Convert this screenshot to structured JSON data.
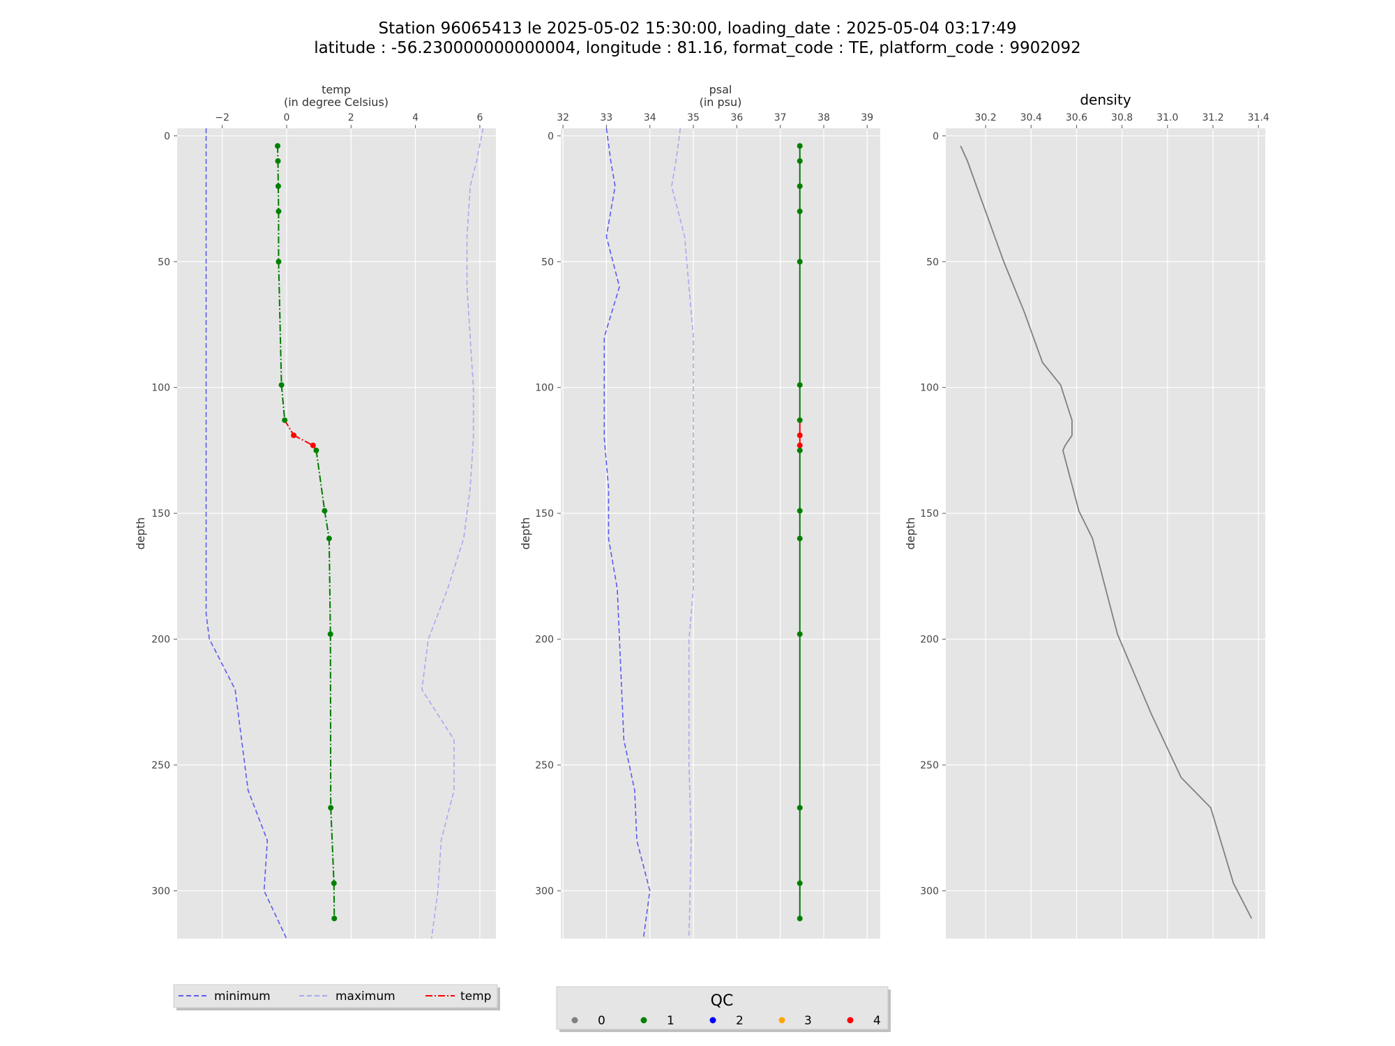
{
  "title_line1": "Station 96065413 le 2025-05-02 15:30:00, loading_date : 2025-05-04 03:17:49",
  "title_line2": "latitude : -56.230000000000004, longitude : 81.16, format_code : TE, platform_code : 9902092",
  "colors": {
    "panel_bg": "#e5e5e5",
    "grid": "#ffffff",
    "minimum": "#5a5af0",
    "maximum": "#a8a8f0",
    "profile_line": "#007a00",
    "bad_line": "#ff0000",
    "density": "#7f7f7f",
    "qc": {
      "0": "#808080",
      "1": "#008000",
      "2": "#0000ff",
      "3": "#ffa500",
      "4": "#ff0000"
    }
  },
  "legend_lines": {
    "items": [
      {
        "label": "minimum",
        "style": "dashed",
        "color": "#5a5af0"
      },
      {
        "label": "maximum",
        "style": "dashed",
        "color": "#a8a8f0"
      },
      {
        "label": "temp",
        "style": "dashdot",
        "color": "#ff0000"
      }
    ]
  },
  "legend_qc": {
    "title": "QC",
    "items": [
      {
        "label": "0",
        "color": "#808080"
      },
      {
        "label": "1",
        "color": "#008000"
      },
      {
        "label": "2",
        "color": "#0000ff"
      },
      {
        "label": "3",
        "color": "#ffa500"
      },
      {
        "label": "4",
        "color": "#ff0000"
      }
    ]
  },
  "chart_data": [
    {
      "type": "line",
      "xlabel_line1": "temp",
      "xlabel_line2": "(in degree Celsius)",
      "ylabel": "depth",
      "xlim": [
        -3.4,
        6.5
      ],
      "ylim": [
        319,
        -3
      ],
      "xticks": [
        -2,
        0,
        2,
        4,
        6
      ],
      "xtick_labels": [
        "−2",
        "0",
        "2",
        "4",
        "6"
      ],
      "yticks": [
        0,
        50,
        100,
        150,
        200,
        250,
        300
      ],
      "grid": true,
      "minimum": {
        "x": [
          -2.5,
          -2.5,
          -2.5,
          -2.5,
          -2.5,
          -2.5,
          -2.5,
          -2.5,
          -2.5,
          -2.4,
          -1.6,
          -1.2,
          -0.6,
          -0.7,
          0.0
        ],
        "depth": [
          -3,
          20,
          50,
          80,
          100,
          120,
          150,
          180,
          190,
          200,
          220,
          260,
          280,
          300,
          319
        ]
      },
      "maximum": {
        "x": [
          6.1,
          5.9,
          5.7,
          5.6,
          5.6,
          5.7,
          5.8,
          5.8,
          5.7,
          5.5,
          5.0,
          4.4,
          4.2,
          5.2,
          5.2,
          4.8,
          4.7,
          4.5
        ],
        "depth": [
          -3,
          10,
          20,
          40,
          60,
          80,
          100,
          120,
          140,
          160,
          180,
          200,
          220,
          240,
          260,
          280,
          300,
          319
        ]
      },
      "profile": {
        "x": [
          -0.28,
          -0.27,
          -0.26,
          -0.25,
          -0.25,
          -0.16,
          -0.06,
          0.22,
          0.82,
          0.92,
          1.18,
          1.32,
          1.36,
          1.37,
          1.47,
          1.48
        ],
        "depth": [
          4,
          10,
          20,
          30,
          50,
          99,
          113,
          119,
          123,
          125,
          149,
          160,
          198,
          267,
          297,
          311
        ],
        "qc": [
          1,
          1,
          1,
          1,
          1,
          1,
          1,
          4,
          4,
          1,
          1,
          1,
          1,
          1,
          1,
          1
        ]
      }
    },
    {
      "type": "line",
      "xlabel_line1": "psal",
      "xlabel_line2": "(in psu)",
      "ylabel": "depth",
      "xlim": [
        31.95,
        39.3
      ],
      "ylim": [
        319,
        -3
      ],
      "xticks": [
        32,
        33,
        34,
        35,
        36,
        37,
        38,
        39
      ],
      "xtick_labels": [
        "32",
        "33",
        "34",
        "35",
        "36",
        "37",
        "38",
        "39"
      ],
      "yticks": [
        0,
        50,
        100,
        150,
        200,
        250,
        300
      ],
      "grid": true,
      "minimum": {
        "x": [
          33.0,
          33.1,
          33.2,
          33.0,
          33.3,
          32.95,
          32.95,
          32.95,
          33.05,
          33.05,
          33.25,
          33.3,
          33.4,
          33.65,
          33.7,
          34.0,
          33.85
        ],
        "depth": [
          -3,
          10,
          20,
          40,
          60,
          80,
          100,
          120,
          140,
          160,
          180,
          200,
          240,
          260,
          280,
          300,
          319
        ]
      },
      "maximum": {
        "x": [
          34.7,
          34.6,
          34.5,
          34.8,
          34.9,
          35.0,
          35.0,
          35.0,
          35.0,
          35.0,
          34.9,
          34.9,
          34.95,
          34.9
        ],
        "depth": [
          -3,
          10,
          20,
          40,
          60,
          80,
          100,
          140,
          160,
          180,
          200,
          250,
          280,
          319
        ]
      },
      "profile": {
        "x": [
          37.45,
          37.45,
          37.45,
          37.45,
          37.45,
          37.45,
          37.45,
          37.45,
          37.45,
          37.45,
          37.45,
          37.45,
          37.45,
          37.45,
          37.45,
          37.45
        ],
        "depth": [
          4,
          10,
          20,
          30,
          50,
          99,
          113,
          119,
          123,
          125,
          149,
          160,
          198,
          267,
          297,
          311
        ],
        "qc": [
          1,
          1,
          1,
          1,
          1,
          1,
          1,
          4,
          4,
          1,
          1,
          1,
          1,
          1,
          1,
          1
        ]
      }
    },
    {
      "type": "line",
      "title": "density",
      "ylabel": "depth",
      "xlim": [
        30.025,
        31.43
      ],
      "ylim": [
        319,
        -3
      ],
      "xticks": [
        30.2,
        30.4,
        30.6,
        30.8,
        31.0,
        31.2,
        31.4
      ],
      "xtick_labels": [
        "30.2",
        "30.4",
        "30.6",
        "30.8",
        "31.0",
        "31.2",
        "31.4"
      ],
      "yticks": [
        0,
        50,
        100,
        150,
        200,
        250,
        300
      ],
      "grid": true,
      "density": {
        "x": [
          30.09,
          30.12,
          30.2,
          30.28,
          30.37,
          30.45,
          30.53,
          30.58,
          30.58,
          30.55,
          30.54,
          30.61,
          30.67,
          30.78,
          30.93,
          31.06,
          31.19,
          31.29,
          31.37
        ],
        "depth": [
          4,
          10,
          30,
          50,
          70,
          90,
          99,
          113,
          119,
          123,
          125,
          149,
          160,
          198,
          230,
          255,
          267,
          297,
          311
        ]
      }
    }
  ]
}
